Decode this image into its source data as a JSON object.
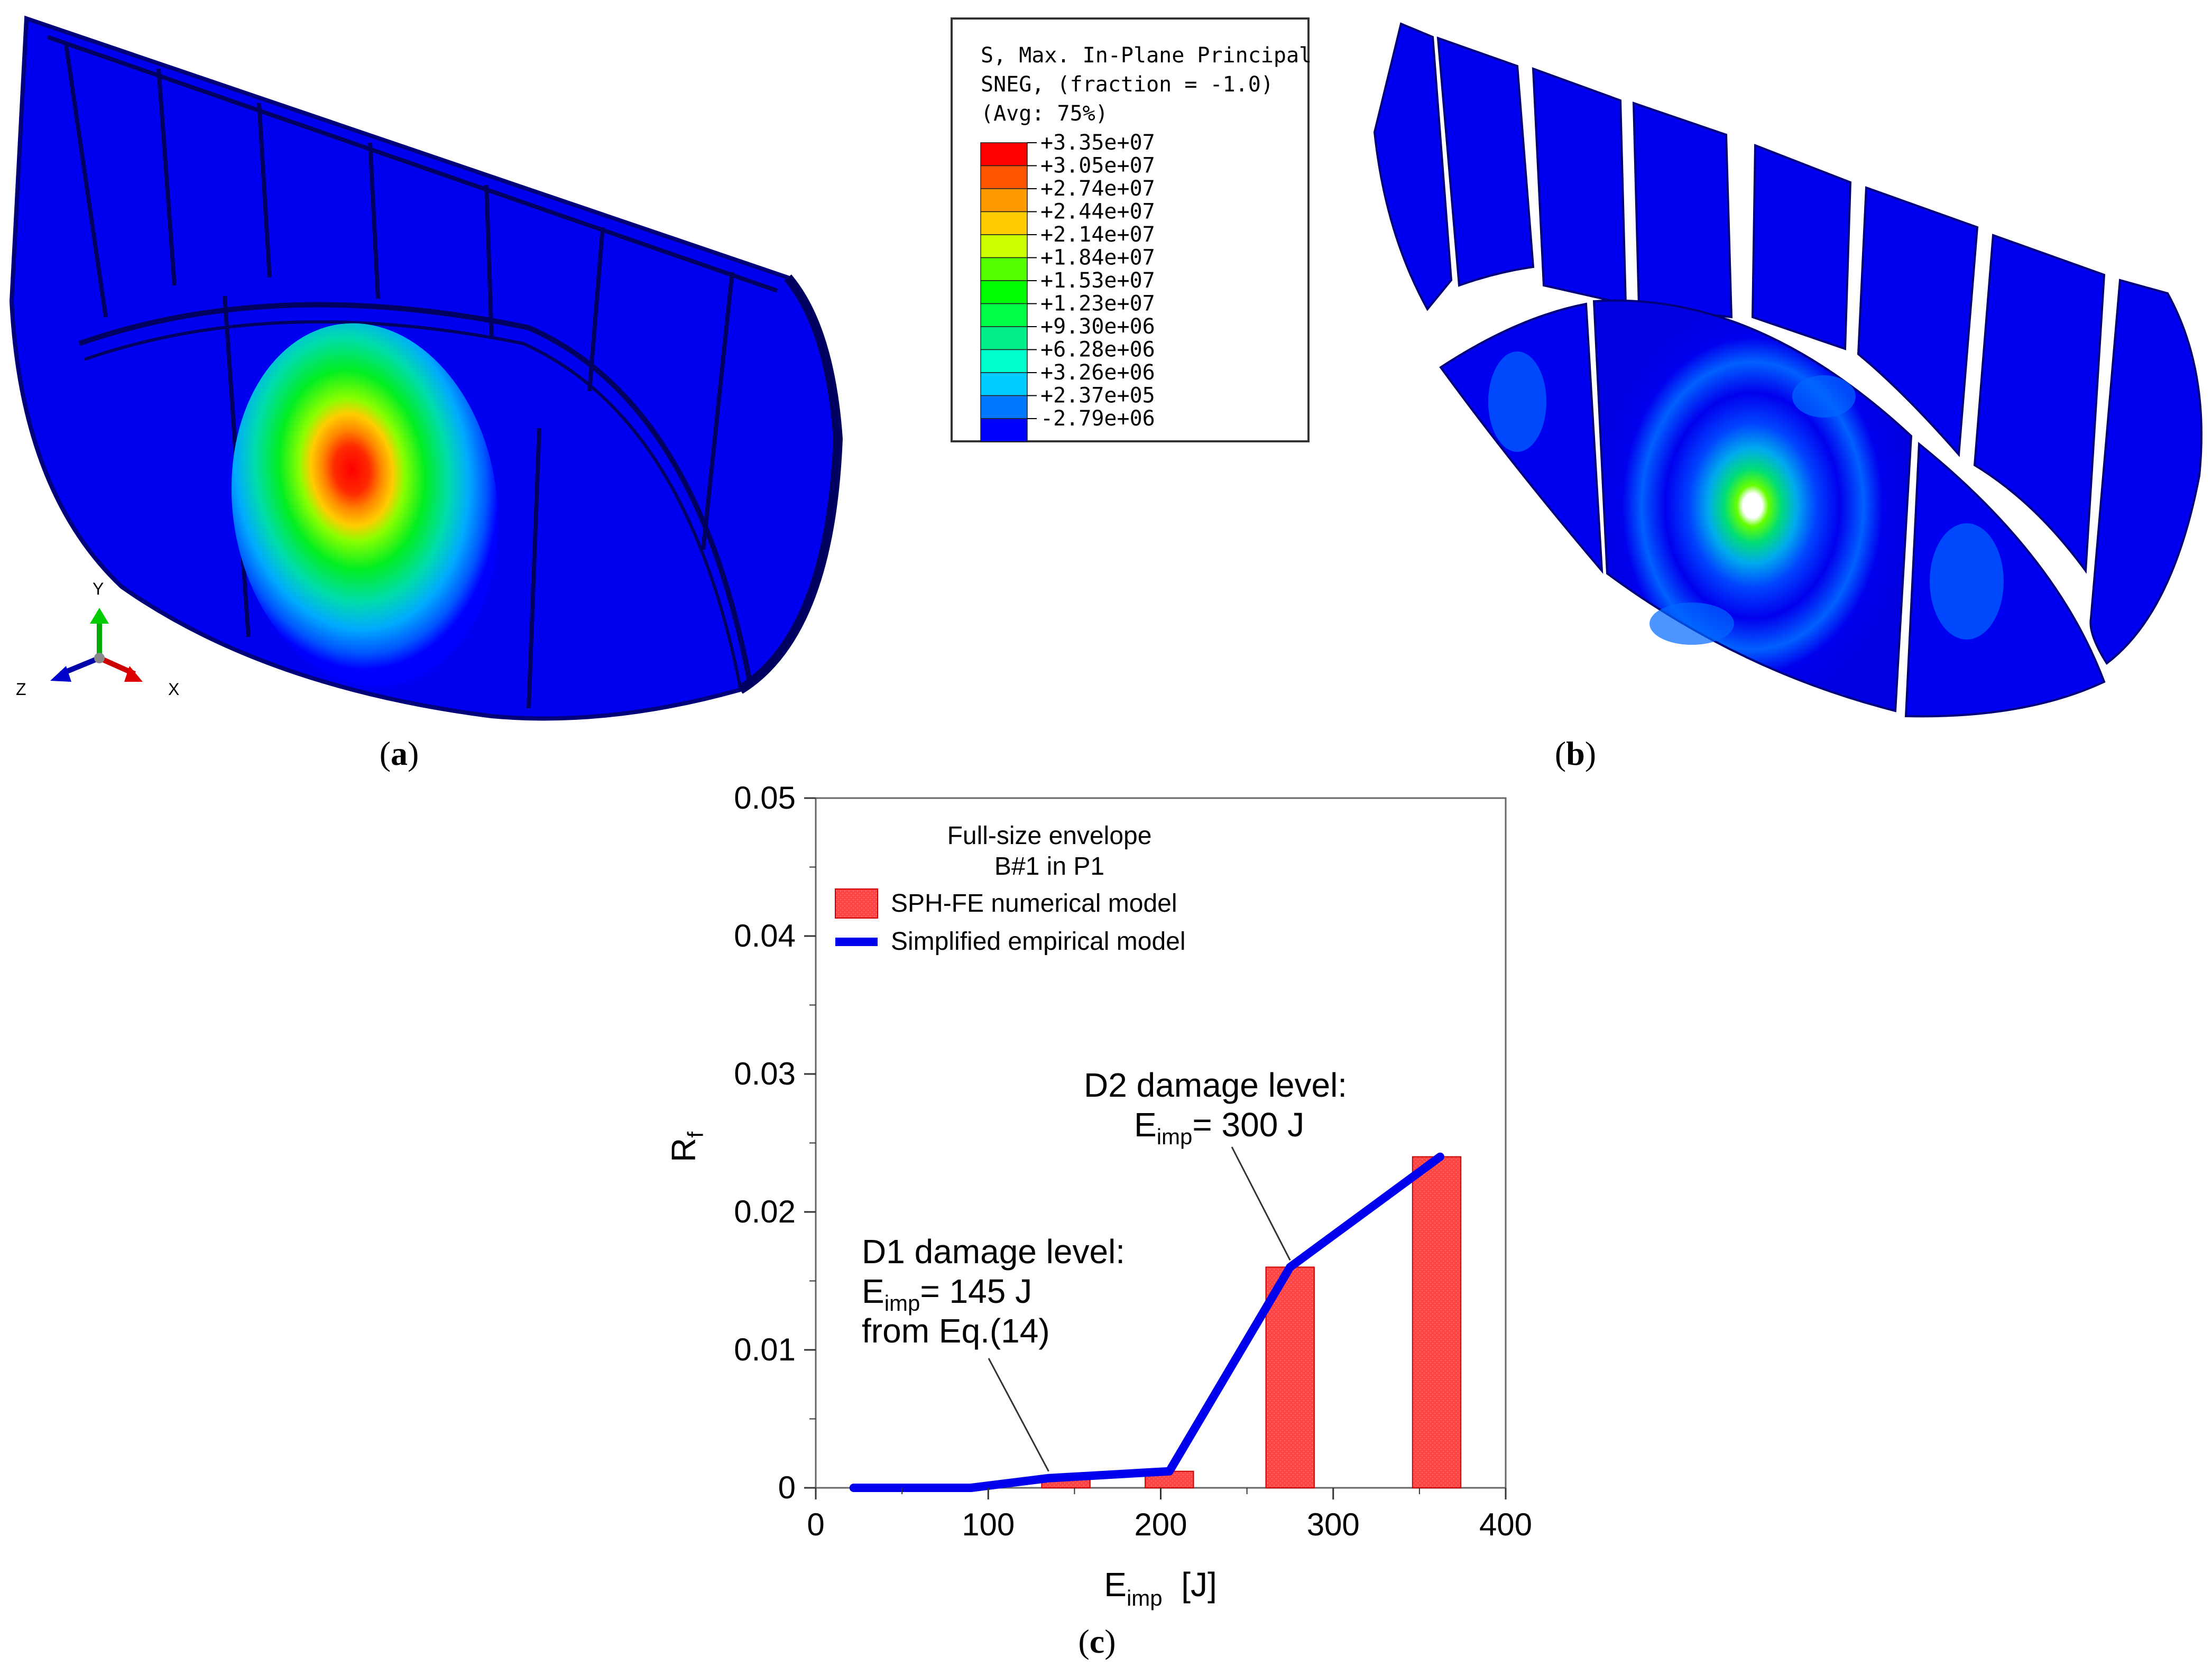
{
  "panel_a": {
    "label_open": "(",
    "label_letter": "a",
    "label_close": ")",
    "triad": {
      "y": "Y",
      "z": "Z",
      "x": "X"
    }
  },
  "panel_b": {
    "label_open": "(",
    "label_letter": "b",
    "label_close": ")"
  },
  "panel_c": {
    "label_open": "(",
    "label_letter": "c",
    "label_close": ")"
  },
  "contour_legend": {
    "title_lines": [
      "S, Max. In-Plane Principal",
      "SNEG, (fraction = -1.0)",
      "(Avg: 75%)"
    ],
    "levels": [
      "+3.35e+07",
      "+3.05e+07",
      "+2.74e+07",
      "+2.44e+07",
      "+2.14e+07",
      "+1.84e+07",
      "+1.53e+07",
      "+1.23e+07",
      "+9.30e+06",
      "+6.28e+06",
      "+3.26e+06",
      "+2.37e+05",
      "-2.79e+06"
    ],
    "colors": [
      "#ff0000",
      "#ff5500",
      "#ff9900",
      "#ffcc00",
      "#ccff00",
      "#55ff00",
      "#00ff00",
      "#00ff44",
      "#00ee88",
      "#00ffcc",
      "#00ccff",
      "#0077ff",
      "#0000ff"
    ]
  },
  "chart_data": {
    "type": "bar",
    "title_lines": [
      "Full-size envelope",
      "B#1 in P1"
    ],
    "xlabel_main": "E",
    "xlabel_sub": "imp",
    "xlabel_unit": "  [J]",
    "ylabel_main": "R",
    "ylabel_sub": "f",
    "xlim": [
      0,
      400
    ],
    "ylim": [
      0,
      0.05
    ],
    "xticks": [
      0,
      100,
      200,
      300,
      400
    ],
    "xtick_labels": [
      "0",
      "100",
      "200",
      "300",
      "400"
    ],
    "yticks": [
      0,
      0.01,
      0.02,
      0.03,
      0.04,
      0.05
    ],
    "ytick_labels": [
      "0",
      "0.01",
      "0.02",
      "0.03",
      "0.04",
      "0.05"
    ],
    "legend": [
      "SPH-FE numerical model",
      "Simplified empirical model"
    ],
    "bars": {
      "name": "SPH-FE numerical model",
      "color": "#ff4d4d",
      "x": [
        145,
        205,
        275,
        360
      ],
      "width": 28,
      "values": [
        0.0007,
        0.0012,
        0.016,
        0.024
      ]
    },
    "line": {
      "name": "Simplified empirical model",
      "color": "#0000ee",
      "x": [
        22,
        90,
        135,
        205,
        275,
        362
      ],
      "values": [
        0,
        0,
        0.0007,
        0.0012,
        0.016,
        0.024
      ]
    },
    "annotations": [
      {
        "lines": [
          "D1 damage level:"
        ],
        "eline_main": "E",
        "eline_sub": "imp",
        "eline_rest": "= 145 J",
        "extra": "from Eq.(14)",
        "arrow_to": [
          135,
          0.0012
        ]
      },
      {
        "lines": [
          "D2 damage level:"
        ],
        "eline_main": "E",
        "eline_sub": "imp",
        "eline_rest": "= 300 J",
        "extra": "",
        "arrow_to": [
          275,
          0.0165
        ]
      }
    ]
  }
}
